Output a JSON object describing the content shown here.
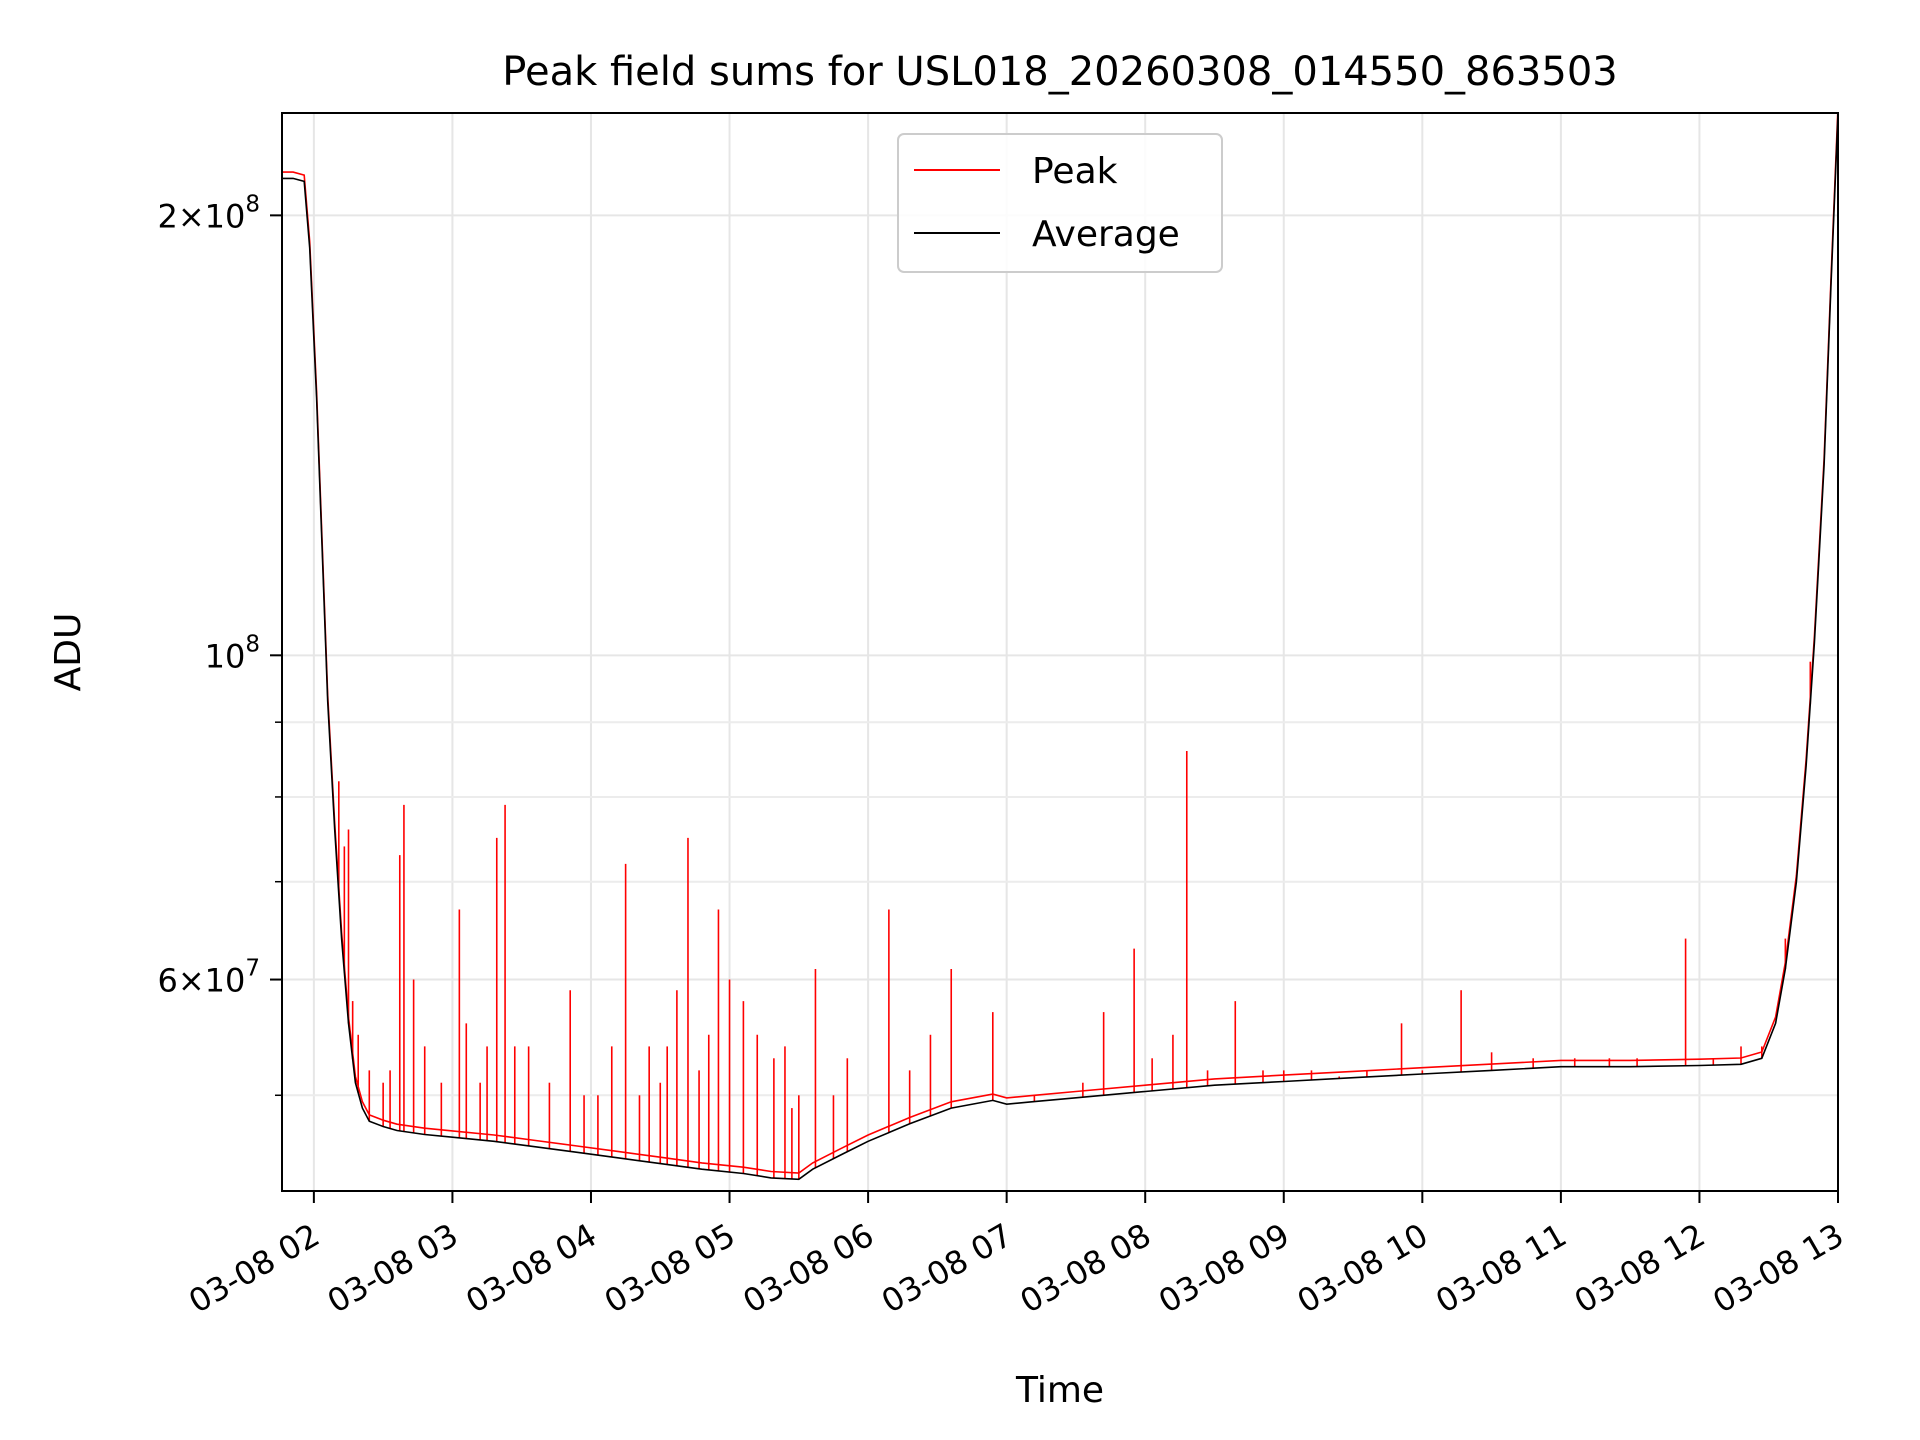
{
  "chart_data": {
    "type": "line",
    "title": "Peak field sums for USL018_20260308_014550_863503",
    "xlabel": "Time",
    "ylabel": "ADU",
    "yscale": "log",
    "ylim": [
      43000000,
      235000000
    ],
    "xlim": [
      1.77,
      13.0
    ],
    "grid": true,
    "legend_position": "upper center",
    "x_ticks": [
      {
        "value": 2,
        "label": "03-08 02"
      },
      {
        "value": 3,
        "label": "03-08 03"
      },
      {
        "value": 4,
        "label": "03-08 04"
      },
      {
        "value": 5,
        "label": "03-08 05"
      },
      {
        "value": 6,
        "label": "03-08 06"
      },
      {
        "value": 7,
        "label": "03-08 07"
      },
      {
        "value": 8,
        "label": "03-08 08"
      },
      {
        "value": 9,
        "label": "03-08 09"
      },
      {
        "value": 10,
        "label": "03-08 10"
      },
      {
        "value": 11,
        "label": "03-08 11"
      },
      {
        "value": 12,
        "label": "03-08 12"
      },
      {
        "value": 13,
        "label": "03-08 13"
      }
    ],
    "y_major_ticks": [
      {
        "value": 200000000,
        "mantissa": "2",
        "exponent": "8",
        "has_mantissa": true
      },
      {
        "value": 100000000,
        "mantissa": "",
        "exponent": "8",
        "has_mantissa": false
      },
      {
        "value": 60000000,
        "mantissa": "6",
        "exponent": "7",
        "has_mantissa": true
      }
    ],
    "y_minor_ticks": [
      50000000,
      70000000,
      80000000,
      90000000
    ],
    "series": [
      {
        "name": "Average",
        "color": "#000000",
        "x": [
          1.77,
          1.85,
          1.93,
          1.97,
          2.02,
          2.06,
          2.1,
          2.15,
          2.2,
          2.25,
          2.3,
          2.35,
          2.4,
          2.5,
          2.6,
          2.8,
          3.0,
          3.3,
          3.6,
          3.9,
          4.2,
          4.5,
          4.8,
          5.1,
          5.3,
          5.5,
          5.6,
          5.8,
          6.0,
          6.3,
          6.6,
          6.9,
          7.0,
          7.2,
          7.5,
          8.0,
          8.5,
          9.0,
          9.5,
          10.0,
          10.5,
          11.0,
          11.5,
          12.0,
          12.3,
          12.45,
          12.55,
          12.62,
          12.7,
          12.77,
          12.83,
          12.9,
          12.95,
          13.0
        ],
        "values": [
          212000000,
          212000000,
          211000000,
          190000000,
          150000000,
          118000000,
          93000000,
          76000000,
          64000000,
          56000000,
          51000000,
          49000000,
          48000000,
          47600000,
          47300000,
          47000000,
          46800000,
          46500000,
          46100000,
          45700000,
          45300000,
          44900000,
          44500000,
          44200000,
          43900000,
          43800000,
          44500000,
          45500000,
          46500000,
          47800000,
          49000000,
          49600000,
          49300000,
          49500000,
          49800000,
          50300000,
          50800000,
          51100000,
          51400000,
          51700000,
          52000000,
          52300000,
          52300000,
          52400000,
          52500000,
          53000000,
          56000000,
          61000000,
          70000000,
          84000000,
          102000000,
          135000000,
          180000000,
          235000000
        ]
      },
      {
        "name": "Peak",
        "color": "#ff0000",
        "spikes": [
          [
            2.18,
            82000000
          ],
          [
            2.22,
            74000000
          ],
          [
            2.25,
            76000000
          ],
          [
            2.28,
            58000000
          ],
          [
            2.32,
            55000000
          ],
          [
            2.4,
            52000000
          ],
          [
            2.5,
            51000000
          ],
          [
            2.55,
            52000000
          ],
          [
            2.62,
            73000000
          ],
          [
            2.65,
            79000000
          ],
          [
            2.72,
            60000000
          ],
          [
            2.8,
            54000000
          ],
          [
            2.92,
            51000000
          ],
          [
            3.05,
            67000000
          ],
          [
            3.1,
            56000000
          ],
          [
            3.2,
            51000000
          ],
          [
            3.25,
            54000000
          ],
          [
            3.32,
            75000000
          ],
          [
            3.38,
            79000000
          ],
          [
            3.45,
            54000000
          ],
          [
            3.55,
            54000000
          ],
          [
            3.7,
            51000000
          ],
          [
            3.85,
            59000000
          ],
          [
            3.95,
            50000000
          ],
          [
            4.05,
            50000000
          ],
          [
            4.15,
            54000000
          ],
          [
            4.25,
            72000000
          ],
          [
            4.35,
            50000000
          ],
          [
            4.42,
            54000000
          ],
          [
            4.5,
            51000000
          ],
          [
            4.55,
            54000000
          ],
          [
            4.62,
            59000000
          ],
          [
            4.7,
            75000000
          ],
          [
            4.78,
            52000000
          ],
          [
            4.85,
            55000000
          ],
          [
            4.92,
            67000000
          ],
          [
            5.0,
            60000000
          ],
          [
            5.1,
            58000000
          ],
          [
            5.2,
            55000000
          ],
          [
            5.32,
            53000000
          ],
          [
            5.4,
            54000000
          ],
          [
            5.45,
            49000000
          ],
          [
            5.5,
            50000000
          ],
          [
            5.62,
            61000000
          ],
          [
            5.75,
            50000000
          ],
          [
            5.85,
            53000000
          ],
          [
            6.15,
            67000000
          ],
          [
            6.3,
            52000000
          ],
          [
            6.45,
            55000000
          ],
          [
            6.6,
            61000000
          ],
          [
            6.9,
            57000000
          ],
          [
            7.2,
            50000000
          ],
          [
            7.55,
            51000000
          ],
          [
            7.7,
            57000000
          ],
          [
            7.92,
            63000000
          ],
          [
            8.05,
            53000000
          ],
          [
            8.2,
            55000000
          ],
          [
            8.3,
            86000000
          ],
          [
            8.45,
            52000000
          ],
          [
            8.65,
            58000000
          ],
          [
            8.85,
            52000000
          ],
          [
            9.0,
            52000000
          ],
          [
            9.2,
            52000000
          ],
          [
            9.4,
            51500000
          ],
          [
            9.6,
            52000000
          ],
          [
            9.85,
            56000000
          ],
          [
            10.0,
            52000000
          ],
          [
            10.28,
            59000000
          ],
          [
            10.5,
            53500000
          ],
          [
            10.8,
            53000000
          ],
          [
            11.1,
            53000000
          ],
          [
            11.35,
            53000000
          ],
          [
            11.55,
            53000000
          ],
          [
            11.9,
            64000000
          ],
          [
            12.1,
            53000000
          ],
          [
            12.3,
            54000000
          ],
          [
            12.45,
            54000000
          ],
          [
            12.62,
            64000000
          ],
          [
            12.8,
            99000000
          ]
        ]
      }
    ],
    "legend": {
      "entries": [
        {
          "label": "Peak",
          "color": "#ff0000"
        },
        {
          "label": "Average",
          "color": "#000000"
        }
      ]
    }
  }
}
